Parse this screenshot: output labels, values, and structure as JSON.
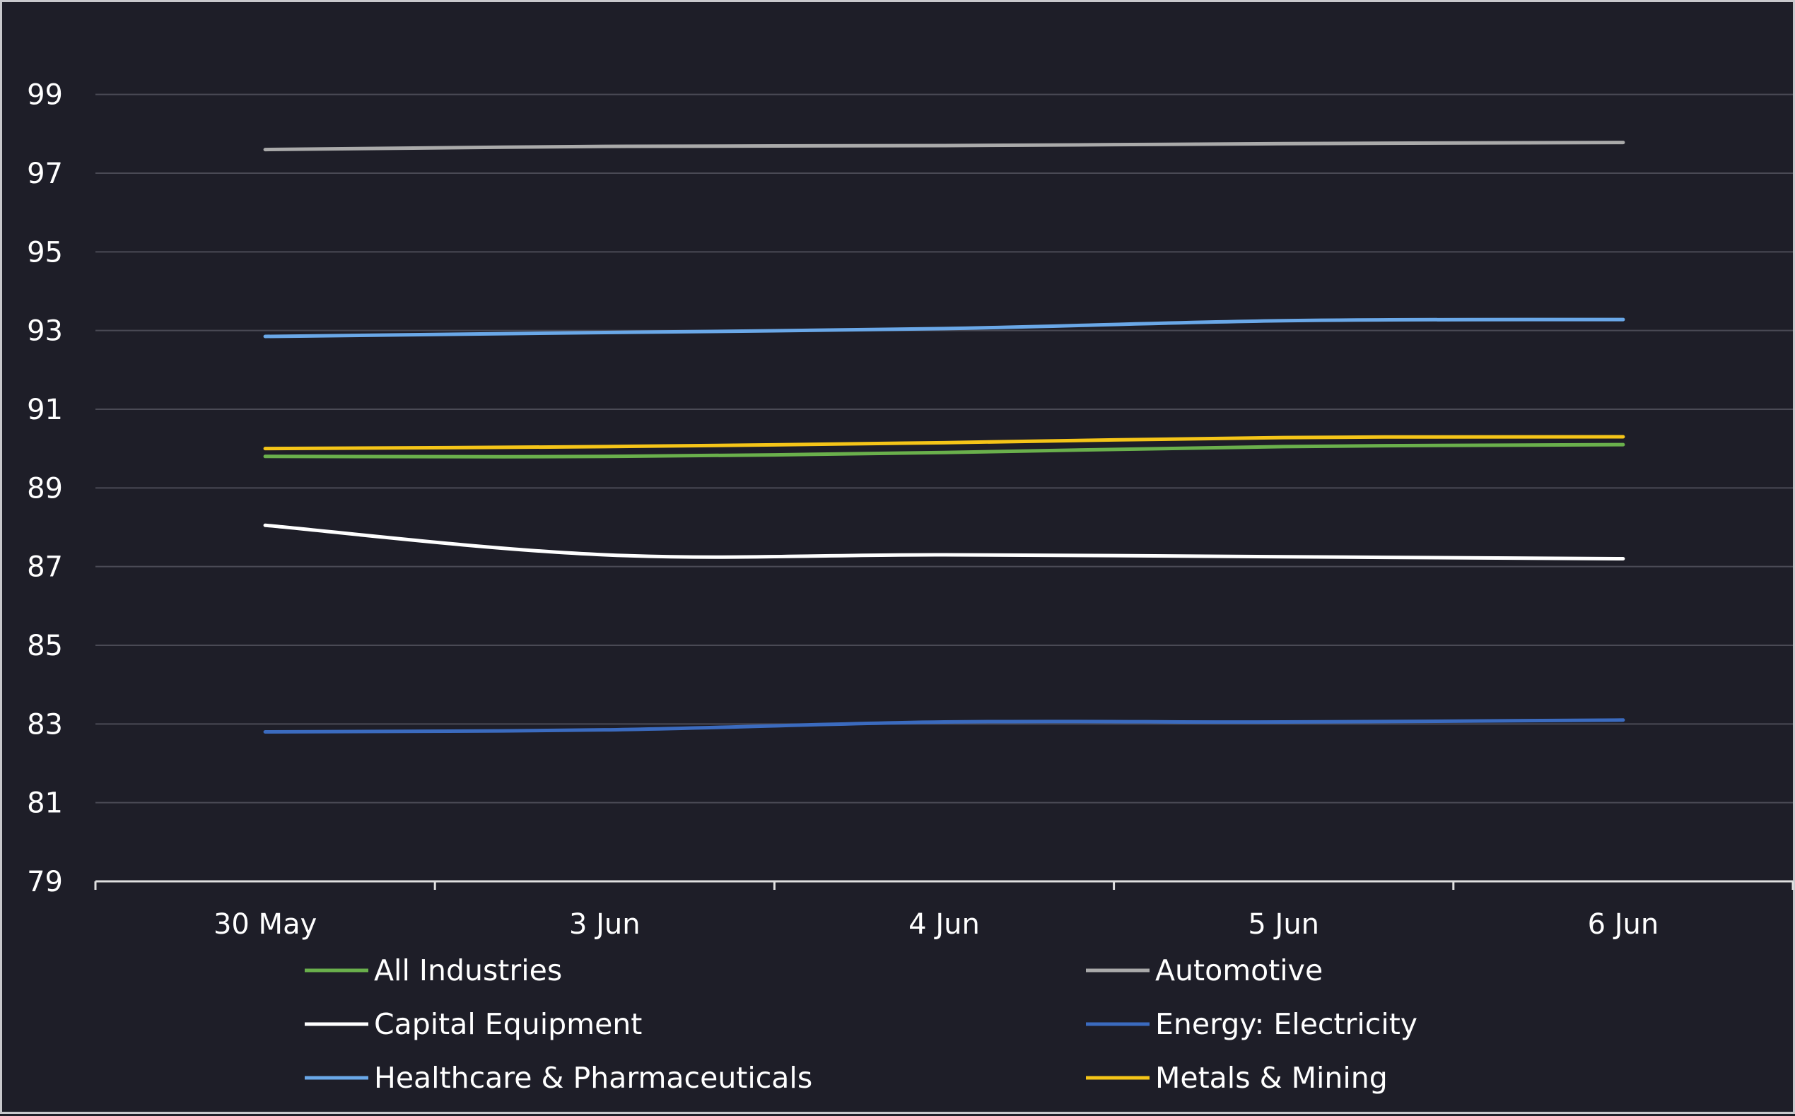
{
  "chart_data": {
    "type": "line",
    "title": "",
    "xlabel": "",
    "ylabel": "",
    "categories": [
      "30 May",
      "3 Jun",
      "4 Jun",
      "5 Jun",
      "6 Jun"
    ],
    "ylim": [
      79,
      100
    ],
    "yticks": [
      79,
      81,
      83,
      85,
      87,
      89,
      91,
      93,
      95,
      97,
      99
    ],
    "grid": true,
    "legend_position": "bottom",
    "background": "#1e1e28",
    "series": [
      {
        "name": "All Industries",
        "color": "#6ab04c",
        "values": [
          89.8,
          89.8,
          89.9,
          90.05,
          90.1
        ]
      },
      {
        "name": "Automotive",
        "color": "#aaaaaa",
        "values": [
          97.6,
          97.68,
          97.7,
          97.75,
          97.78
        ]
      },
      {
        "name": "Capital Equipment",
        "color": "#ffffff",
        "values": [
          88.05,
          87.3,
          87.3,
          87.25,
          87.2
        ]
      },
      {
        "name": "Energy: Electricity",
        "color": "#3b6bbf",
        "values": [
          82.8,
          82.85,
          83.05,
          83.05,
          83.1
        ]
      },
      {
        "name": "Healthcare & Pharmaceuticals",
        "color": "#6aa8e8",
        "values": [
          92.85,
          92.95,
          93.05,
          93.25,
          93.28
        ]
      },
      {
        "name": "Metals & Mining",
        "color": "#f5c518",
        "values": [
          90.0,
          90.05,
          90.15,
          90.28,
          90.3
        ]
      }
    ]
  }
}
